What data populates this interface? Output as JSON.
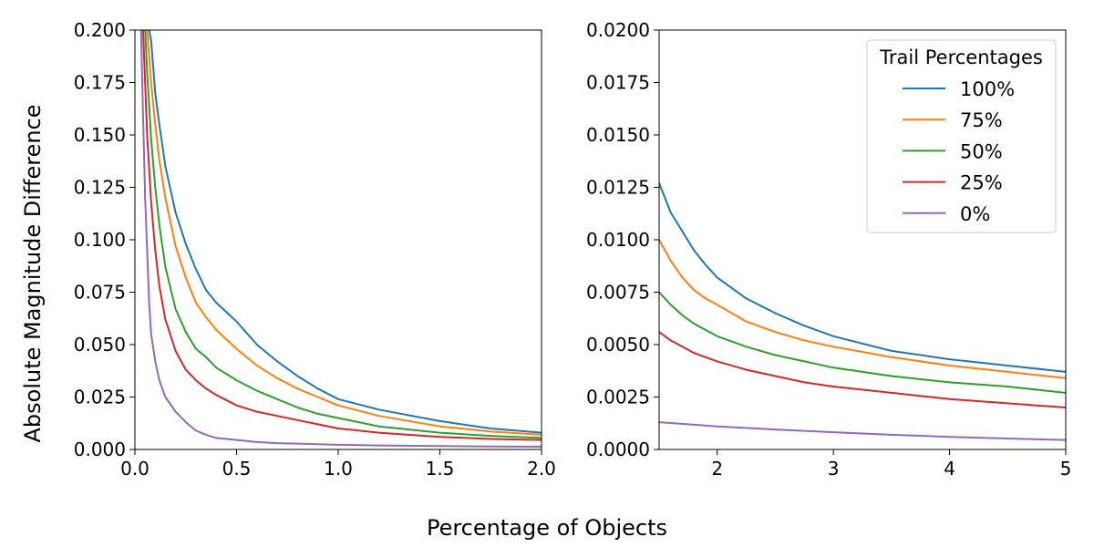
{
  "figure": {
    "xlabel": "Percentage of Objects",
    "ylabel": "Absolute Magnitude Difference"
  },
  "chart_data": [
    {
      "type": "line",
      "xlim": [
        0.0,
        2.0
      ],
      "ylim": [
        0.0,
        0.2
      ],
      "xticks": [
        0.0,
        0.5,
        1.0,
        1.5,
        2.0
      ],
      "xtick_labels": [
        "0.0",
        "0.5",
        "1.0",
        "1.5",
        "2.0"
      ],
      "yticks": [
        0.0,
        0.025,
        0.05,
        0.075,
        0.1,
        0.125,
        0.15,
        0.175,
        0.2
      ],
      "ytick_labels": [
        "0.000",
        "0.025",
        "0.050",
        "0.075",
        "0.100",
        "0.125",
        "0.150",
        "0.175",
        "0.200"
      ],
      "grid": false,
      "series": [
        {
          "name": "100%",
          "color": "#1f77b4",
          "x": [
            0.07,
            0.08,
            0.1,
            0.12,
            0.15,
            0.2,
            0.25,
            0.3,
            0.35,
            0.4,
            0.5,
            0.6,
            0.7,
            0.8,
            0.9,
            1.0,
            1.2,
            1.5,
            1.75,
            2.0
          ],
          "y": [
            0.2,
            0.195,
            0.17,
            0.155,
            0.135,
            0.113,
            0.098,
            0.086,
            0.076,
            0.07,
            0.061,
            0.05,
            0.042,
            0.035,
            0.029,
            0.024,
            0.019,
            0.0135,
            0.01,
            0.008
          ]
        },
        {
          "name": "75%",
          "color": "#ff7f0e",
          "x": [
            0.06,
            0.08,
            0.1,
            0.12,
            0.15,
            0.2,
            0.25,
            0.3,
            0.35,
            0.4,
            0.5,
            0.6,
            0.7,
            0.8,
            0.9,
            1.0,
            1.2,
            1.5,
            1.75,
            2.0
          ],
          "y": [
            0.2,
            0.175,
            0.155,
            0.138,
            0.12,
            0.097,
            0.082,
            0.07,
            0.063,
            0.057,
            0.048,
            0.04,
            0.034,
            0.029,
            0.025,
            0.021,
            0.016,
            0.011,
            0.0085,
            0.007
          ]
        },
        {
          "name": "50%",
          "color": "#2ca02c",
          "x": [
            0.05,
            0.06,
            0.08,
            0.1,
            0.12,
            0.15,
            0.2,
            0.25,
            0.3,
            0.35,
            0.4,
            0.5,
            0.6,
            0.7,
            0.8,
            0.9,
            1.0,
            1.2,
            1.5,
            1.75,
            2.0
          ],
          "y": [
            0.2,
            0.18,
            0.148,
            0.125,
            0.107,
            0.087,
            0.067,
            0.056,
            0.048,
            0.044,
            0.039,
            0.033,
            0.028,
            0.024,
            0.02,
            0.017,
            0.015,
            0.011,
            0.008,
            0.0065,
            0.0055
          ]
        },
        {
          "name": "25%",
          "color": "#d62728",
          "x": [
            0.04,
            0.05,
            0.06,
            0.08,
            0.1,
            0.12,
            0.15,
            0.2,
            0.25,
            0.3,
            0.35,
            0.4,
            0.5,
            0.6,
            0.7,
            0.8,
            0.9,
            1.0,
            1.2,
            1.5,
            1.75,
            2.0
          ],
          "y": [
            0.2,
            0.175,
            0.15,
            0.118,
            0.095,
            0.078,
            0.062,
            0.047,
            0.038,
            0.033,
            0.029,
            0.026,
            0.021,
            0.018,
            0.016,
            0.014,
            0.012,
            0.01,
            0.008,
            0.006,
            0.005,
            0.0045
          ]
        },
        {
          "name": "0%",
          "color": "#9467bd",
          "x": [
            0.03,
            0.04,
            0.05,
            0.06,
            0.07,
            0.08,
            0.1,
            0.12,
            0.15,
            0.2,
            0.25,
            0.3,
            0.35,
            0.4,
            0.5,
            0.6,
            0.7,
            0.8,
            1.0,
            1.2,
            1.5,
            1.75,
            2.0
          ],
          "y": [
            0.2,
            0.16,
            0.12,
            0.095,
            0.07,
            0.055,
            0.042,
            0.033,
            0.025,
            0.018,
            0.013,
            0.009,
            0.007,
            0.0055,
            0.0045,
            0.0035,
            0.003,
            0.0028,
            0.0022,
            0.0019,
            0.0016,
            0.0014,
            0.0013
          ]
        }
      ]
    },
    {
      "type": "line",
      "xlim": [
        1.5,
        5.0
      ],
      "ylim": [
        0.0,
        0.02
      ],
      "xticks": [
        2,
        3,
        4,
        5
      ],
      "xtick_labels": [
        "2",
        "3",
        "4",
        "5"
      ],
      "yticks": [
        0.0,
        0.0025,
        0.005,
        0.0075,
        0.01,
        0.0125,
        0.015,
        0.0175,
        0.02
      ],
      "ytick_labels": [
        "0.0000",
        "0.0025",
        "0.0050",
        "0.0075",
        "0.0100",
        "0.0125",
        "0.0150",
        "0.0175",
        "0.0200"
      ],
      "grid": false,
      "legend": {
        "title": "Trail Percentages",
        "placement": "upper right"
      },
      "series": [
        {
          "name": "100%",
          "color": "#1f77b4",
          "x": [
            1.5,
            1.6,
            1.7,
            1.8,
            1.9,
            2.0,
            2.25,
            2.5,
            2.75,
            3.0,
            3.5,
            4.0,
            4.5,
            5.0
          ],
          "y": [
            0.0127,
            0.0113,
            0.0104,
            0.0095,
            0.0088,
            0.0082,
            0.0072,
            0.0065,
            0.0059,
            0.0054,
            0.0047,
            0.0043,
            0.004,
            0.0037
          ]
        },
        {
          "name": "75%",
          "color": "#ff7f0e",
          "x": [
            1.5,
            1.6,
            1.7,
            1.8,
            1.9,
            2.0,
            2.25,
            2.5,
            2.75,
            3.0,
            3.5,
            4.0,
            4.5,
            5.0
          ],
          "y": [
            0.01,
            0.009,
            0.0082,
            0.0076,
            0.0072,
            0.0069,
            0.0061,
            0.0056,
            0.0052,
            0.0049,
            0.0044,
            0.004,
            0.0037,
            0.0034
          ]
        },
        {
          "name": "50%",
          "color": "#2ca02c",
          "x": [
            1.5,
            1.6,
            1.7,
            1.8,
            1.9,
            2.0,
            2.25,
            2.5,
            2.75,
            3.0,
            3.5,
            4.0,
            4.5,
            5.0
          ],
          "y": [
            0.0075,
            0.0069,
            0.0064,
            0.006,
            0.0057,
            0.0054,
            0.0049,
            0.0045,
            0.0042,
            0.0039,
            0.0035,
            0.0032,
            0.003,
            0.0027
          ]
        },
        {
          "name": "25%",
          "color": "#d62728",
          "x": [
            1.5,
            1.6,
            1.7,
            1.8,
            1.9,
            2.0,
            2.25,
            2.5,
            2.75,
            3.0,
            3.5,
            4.0,
            4.5,
            5.0
          ],
          "y": [
            0.0056,
            0.0052,
            0.0049,
            0.0046,
            0.0044,
            0.0042,
            0.0038,
            0.0035,
            0.0032,
            0.003,
            0.0027,
            0.0024,
            0.0022,
            0.002
          ]
        },
        {
          "name": "0%",
          "color": "#9467bd",
          "x": [
            1.5,
            2.0,
            2.5,
            3.0,
            3.5,
            4.0,
            4.5,
            5.0
          ],
          "y": [
            0.0013,
            0.0011,
            0.00095,
            0.00082,
            0.0007,
            0.0006,
            0.00052,
            0.00045
          ]
        }
      ]
    }
  ]
}
